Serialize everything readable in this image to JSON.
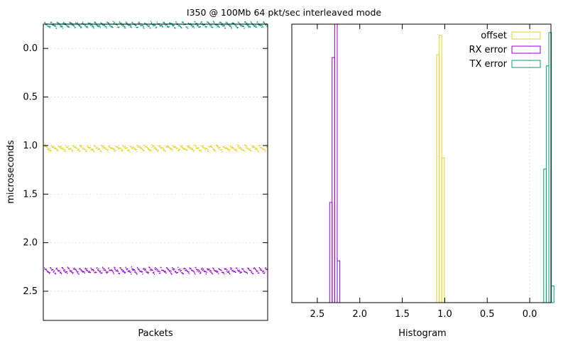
{
  "chart_data": {
    "title": "I350 @ 100Mb 64 pkt/sec interleaved mode",
    "colors": {
      "offset": "#e6d020",
      "rx": "#9400d3",
      "tx": "#009e73",
      "grid": "#cccccc"
    },
    "left": {
      "type": "scatter",
      "xlabel": "Packets",
      "ylabel": "microseconds",
      "ylim": [
        -0.25,
        2.8
      ],
      "y_inverted": true,
      "yticks": [
        "0.0",
        "0.5",
        "1.0",
        "1.5",
        "2.0",
        "2.5"
      ],
      "ytick_values": [
        0,
        0.5,
        1,
        1.5,
        2,
        2.5
      ],
      "grid": true,
      "num_points": 500,
      "series": [
        {
          "key": "tx",
          "center": -0.24,
          "spread": 0.04,
          "period": 14
        },
        {
          "key": "offset",
          "center": 1.03,
          "spread": 0.04,
          "period": 16
        },
        {
          "key": "rx",
          "center": 2.29,
          "spread": 0.04,
          "period": 13
        }
      ]
    },
    "right": {
      "type": "bar",
      "xlabel": "Histogram",
      "xlim": [
        2.8,
        -0.25
      ],
      "x_inverted": true,
      "xticks": [
        "2.5",
        "2.0",
        "1.5",
        "1.0",
        "0.5",
        "0.0"
      ],
      "xtick_values": [
        2.5,
        2,
        1.5,
        1,
        0.5,
        0
      ],
      "count_max": 100,
      "grid": true,
      "legend_placement": "top-right",
      "series": [
        {
          "key": "offset",
          "name": "offset",
          "bins": [
            [
              1.08,
              89
            ],
            [
              1.05,
              96
            ],
            [
              1.02,
              52
            ]
          ]
        },
        {
          "key": "rx",
          "name": "RX error",
          "bins": [
            [
              2.34,
              36
            ],
            [
              2.31,
              88
            ],
            [
              2.28,
              100
            ],
            [
              2.25,
              15
            ]
          ]
        },
        {
          "key": "tx",
          "name": "TX error",
          "bins": [
            [
              -0.18,
              48
            ],
            [
              -0.21,
              85
            ],
            [
              -0.24,
              97
            ],
            [
              -0.27,
              6
            ]
          ]
        }
      ]
    }
  }
}
